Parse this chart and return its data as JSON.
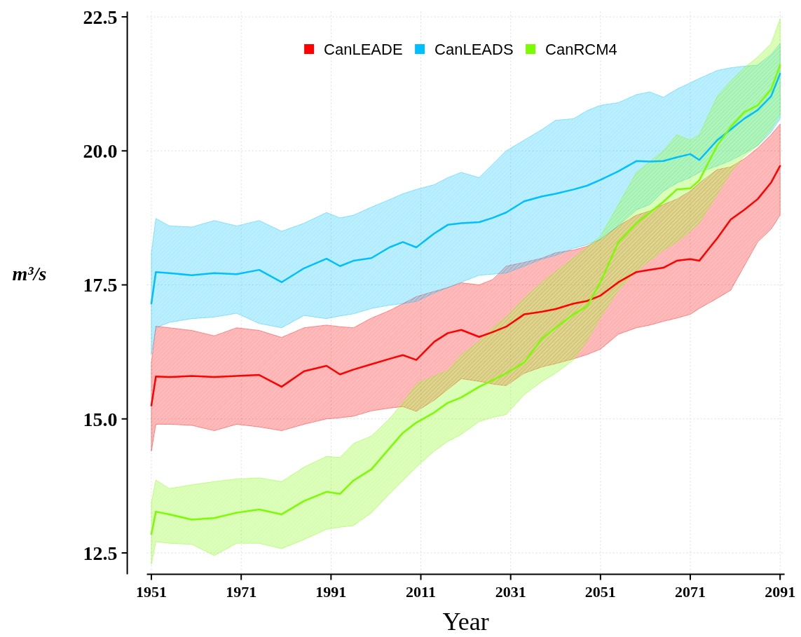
{
  "chart_data": {
    "type": "line",
    "xlabel": "Year",
    "ylabel": "m³/s",
    "x": [
      1951,
      1952,
      1955,
      1960,
      1965,
      1970,
      1975,
      1980,
      1985,
      1990,
      1993,
      1996,
      2000,
      2004,
      2007,
      2010,
      2014,
      2017,
      2020,
      2024,
      2027,
      2030,
      2034,
      2038,
      2041,
      2045,
      2048,
      2051,
      2055,
      2059,
      2062,
      2065,
      2068,
      2071,
      2073,
      2077,
      2080,
      2083,
      2086,
      2089,
      2091
    ],
    "series": [
      {
        "name": "CanLEADE",
        "color": "#ff0000",
        "values": [
          15.25,
          15.79,
          15.78,
          15.8,
          15.78,
          15.8,
          15.82,
          15.6,
          15.89,
          15.99,
          15.83,
          15.92,
          16.02,
          16.12,
          16.19,
          16.1,
          16.44,
          16.6,
          16.66,
          16.53,
          16.62,
          16.72,
          16.95,
          17.0,
          17.05,
          17.15,
          17.2,
          17.3,
          17.55,
          17.74,
          17.78,
          17.82,
          17.95,
          17.98,
          17.95,
          18.37,
          18.72,
          18.9,
          19.1,
          19.41,
          19.72
        ],
        "lower": [
          14.4,
          14.9,
          14.9,
          14.88,
          14.78,
          14.9,
          14.85,
          14.78,
          14.9,
          15.0,
          15.02,
          15.05,
          15.15,
          15.2,
          15.23,
          15.14,
          15.35,
          15.55,
          15.75,
          15.7,
          15.65,
          15.62,
          15.85,
          15.97,
          16.03,
          16.12,
          16.2,
          16.3,
          16.58,
          16.7,
          16.75,
          16.82,
          16.88,
          16.95,
          17.06,
          17.25,
          17.4,
          17.85,
          18.3,
          18.54,
          18.8
        ],
        "upper": [
          16.05,
          16.73,
          16.7,
          16.65,
          16.55,
          16.7,
          16.65,
          16.52,
          16.7,
          16.75,
          16.72,
          16.7,
          16.88,
          17.02,
          17.15,
          17.28,
          17.38,
          17.45,
          17.54,
          17.5,
          17.6,
          17.85,
          17.92,
          18.0,
          18.1,
          18.15,
          18.22,
          18.35,
          18.6,
          18.8,
          18.88,
          19.0,
          19.1,
          19.25,
          19.4,
          19.65,
          19.7,
          19.85,
          20.05,
          20.3,
          20.5
        ]
      },
      {
        "name": "CanLEADS",
        "color": "#00bfff",
        "values": [
          17.15,
          17.74,
          17.72,
          17.68,
          17.72,
          17.7,
          17.78,
          17.55,
          17.81,
          17.99,
          17.85,
          17.95,
          18.0,
          18.2,
          18.3,
          18.2,
          18.46,
          18.62,
          18.65,
          18.67,
          18.75,
          18.85,
          19.06,
          19.15,
          19.2,
          19.28,
          19.35,
          19.46,
          19.62,
          19.81,
          19.8,
          19.81,
          19.88,
          19.94,
          19.83,
          20.2,
          20.4,
          20.6,
          20.76,
          21.02,
          21.44
        ],
        "lower": [
          16.2,
          16.7,
          16.8,
          16.87,
          16.9,
          16.97,
          16.78,
          16.7,
          16.93,
          16.87,
          16.92,
          16.96,
          17.06,
          17.12,
          17.15,
          17.19,
          17.35,
          17.45,
          17.55,
          17.68,
          17.7,
          17.72,
          17.85,
          17.98,
          18.05,
          18.18,
          18.25,
          18.35,
          18.6,
          18.9,
          19.0,
          19.25,
          19.4,
          19.5,
          19.6,
          19.72,
          19.82,
          19.95,
          20.1,
          20.35,
          20.6
        ],
        "upper": [
          18.1,
          18.74,
          18.6,
          18.58,
          18.7,
          18.6,
          18.7,
          18.5,
          18.65,
          18.85,
          18.75,
          18.8,
          18.95,
          19.09,
          19.2,
          19.28,
          19.37,
          19.5,
          19.6,
          19.5,
          19.75,
          20.0,
          20.2,
          20.4,
          20.57,
          20.6,
          20.75,
          20.85,
          20.9,
          21.05,
          21.1,
          21.0,
          21.15,
          21.27,
          21.35,
          21.5,
          21.55,
          21.58,
          21.6,
          21.8,
          22.0
        ]
      },
      {
        "name": "CanRCM4",
        "color": "#7cfc00",
        "values": [
          12.85,
          13.27,
          13.22,
          13.12,
          13.15,
          13.25,
          13.31,
          13.22,
          13.47,
          13.64,
          13.6,
          13.85,
          14.06,
          14.45,
          14.74,
          14.93,
          15.12,
          15.3,
          15.4,
          15.6,
          15.72,
          15.85,
          16.05,
          16.5,
          16.7,
          16.95,
          17.1,
          17.55,
          18.3,
          18.65,
          18.85,
          19.05,
          19.28,
          19.3,
          19.45,
          20.1,
          20.45,
          20.72,
          20.85,
          21.15,
          21.6
        ],
        "lower": [
          12.29,
          12.71,
          12.68,
          12.66,
          12.45,
          12.68,
          12.68,
          12.58,
          12.75,
          12.94,
          12.98,
          13.01,
          13.25,
          13.6,
          13.85,
          14.1,
          14.4,
          14.58,
          14.71,
          14.95,
          15.03,
          15.08,
          15.45,
          15.7,
          15.85,
          16.1,
          16.45,
          16.9,
          17.4,
          17.76,
          17.95,
          18.15,
          18.3,
          18.5,
          18.65,
          19.19,
          19.6,
          19.9,
          20.1,
          20.4,
          20.68
        ],
        "upper": [
          13.44,
          13.86,
          13.7,
          13.77,
          13.83,
          13.88,
          13.9,
          13.83,
          14.1,
          14.3,
          14.28,
          14.54,
          14.68,
          15.0,
          15.3,
          15.65,
          15.8,
          15.9,
          16.19,
          16.45,
          16.7,
          16.9,
          17.25,
          17.55,
          17.75,
          18.0,
          18.2,
          18.41,
          19.0,
          19.6,
          19.8,
          20.0,
          20.3,
          20.2,
          20.3,
          21.02,
          21.3,
          21.55,
          21.75,
          22.0,
          22.46
        ]
      }
    ],
    "xlim": [
      1950,
      2092
    ],
    "xticks": [
      1951,
      1971,
      1991,
      2011,
      2031,
      2051,
      2071,
      2091
    ],
    "ylim": [
      12.1,
      22.6
    ],
    "yticks": [
      12.5,
      {
        "value": 15,
        "label": "15.0"
      },
      17.5,
      {
        "value": 20,
        "label": "20.0"
      },
      22.5
    ],
    "grid": true,
    "legend": "top",
    "marker": "none",
    "line_style": "solid"
  }
}
